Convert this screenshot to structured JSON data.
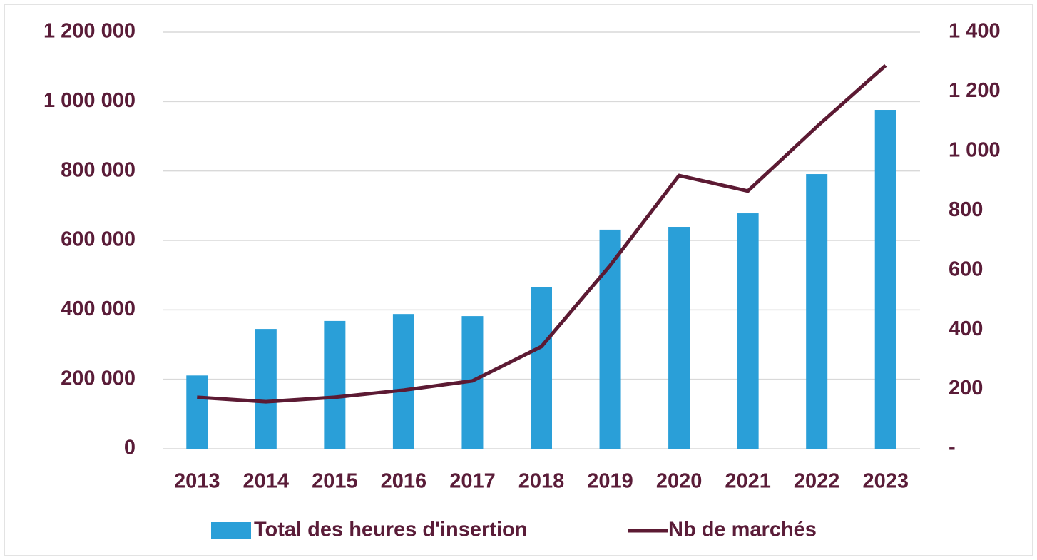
{
  "chart_data": {
    "type": "bar-line",
    "categories": [
      "2013",
      "2014",
      "2015",
      "2016",
      "2017",
      "2018",
      "2019",
      "2020",
      "2021",
      "2022",
      "2023"
    ],
    "series": [
      {
        "name": "Total des heures d'insertion",
        "type": "bar",
        "color": "#2a9fd8",
        "values": [
          211000,
          345000,
          368000,
          388000,
          382000,
          465000,
          631000,
          639000,
          678000,
          791000,
          976000
        ]
      },
      {
        "name": "Nb de marchés",
        "type": "line",
        "color": "#5c1a33",
        "axis": "y2",
        "values": [
          173,
          158,
          173,
          197,
          228,
          343,
          616,
          918,
          866,
          1082,
          1288
        ]
      }
    ],
    "ylim": [
      0,
      1200000
    ],
    "yticks": [
      0,
      {
        "value": 200000,
        "label": "200 000"
      },
      {
        "value": 400000,
        "label": "400 000"
      },
      {
        "value": 600000,
        "label": "600 000"
      },
      {
        "value": 800000,
        "label": "800 000"
      },
      {
        "value": 1000000,
        "label": "1 000 000"
      },
      {
        "value": 1200000,
        "label": "1 200 000"
      }
    ],
    "y2lim": [
      0,
      1400
    ],
    "y2ticks": [
      {
        "value": 0,
        "label": "-"
      },
      200,
      400,
      600,
      800,
      {
        "value": 1000,
        "label": "1 000"
      },
      {
        "value": 1200,
        "label": "1 200"
      },
      {
        "value": 1400,
        "label": "1 400"
      }
    ],
    "grid": true,
    "legend": "bottom"
  }
}
